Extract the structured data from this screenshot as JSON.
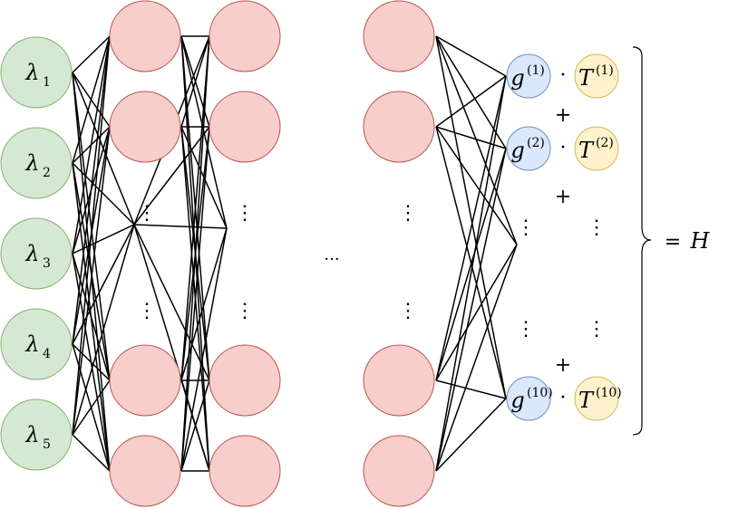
{
  "colors": {
    "input_fill": "#d5e8d4",
    "input_stroke": "#82b366",
    "hidden_fill": "#f8cecc",
    "hidden_stroke": "#b85450",
    "g_fill": "#dae8fc",
    "g_stroke": "#6c8ebf",
    "t_fill": "#fff2cc",
    "t_stroke": "#d6b656",
    "edge": "#000000"
  },
  "inputs": [
    {
      "symbol": "λ",
      "sub": "1"
    },
    {
      "symbol": "λ",
      "sub": "2"
    },
    {
      "symbol": "λ",
      "sub": "3"
    },
    {
      "symbol": "λ",
      "sub": "4"
    },
    {
      "symbol": "λ",
      "sub": "5"
    }
  ],
  "g_terms": [
    {
      "base": "g",
      "sup": "(1)"
    },
    {
      "base": "g",
      "sup": "(2)"
    },
    {
      "base": "g",
      "sup": "(10)"
    }
  ],
  "t_terms": [
    {
      "base": "T",
      "sup": "(1)"
    },
    {
      "base": "T",
      "sup": "(2)"
    },
    {
      "base": "T",
      "sup": "(10)"
    }
  ],
  "dot_operator": "·",
  "plus_sign": "+",
  "vertical_ellipsis": "⋮",
  "horizontal_ellipsis": "···",
  "result": {
    "equals": "=",
    "symbol": "H"
  }
}
